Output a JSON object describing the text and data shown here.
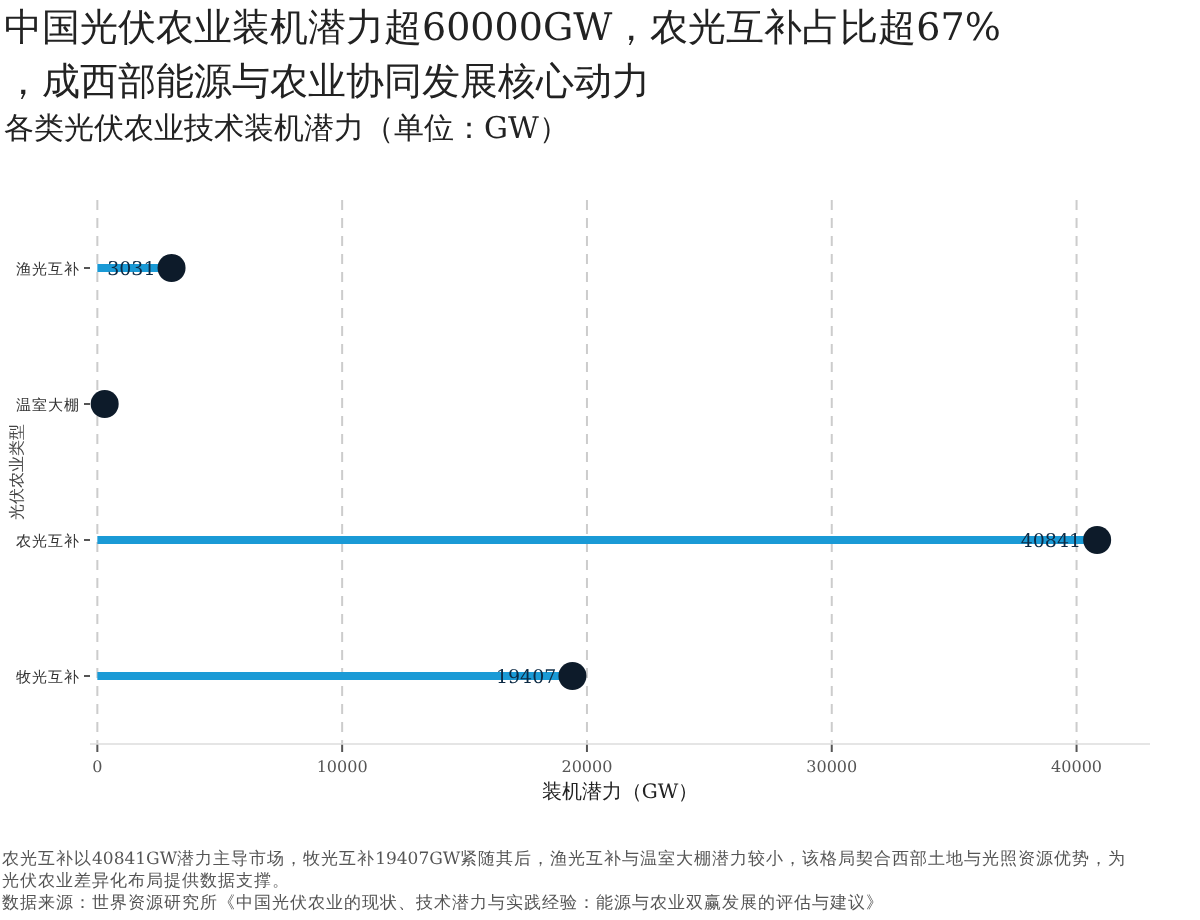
{
  "chart_data": {
    "type": "lollipop",
    "orientation": "horizontal",
    "title": "中国光伏农业装机潜力超60000GW，农光互补占比超67%，成西部能源与农业协同发展核心动力",
    "subtitle": "各类光伏农业技术装机潜力（单位：GW）",
    "xlabel": "装机潜力（GW）",
    "ylabel": "光伏农业类型",
    "categories": [
      "渔光互补",
      "温室大棚",
      "农光互补",
      "牧光互补"
    ],
    "values": [
      3031,
      300,
      40841,
      19407
    ],
    "value_labels": [
      "3031",
      null,
      "40841",
      "19407"
    ],
    "color": "#0d1b2a",
    "xlim": [
      -300,
      43000
    ],
    "xticks": [
      0,
      10000,
      20000,
      30000,
      40000
    ],
    "grid": "x",
    "marker": "circle",
    "annotations": [
      "农光互补以40841GW潜力主导市场，牧光互补19407GW紧随其后，渔光互补与温室大棚潜力较小，该格局契合西部土地与光照资源优势，为光伏农业差异化布局提供数据支撑。",
      "数据来源：世界资源研究所《中国光伏农业的现状、技术潜力与实践经验：能源与农业双赢发展的评估与建议》"
    ]
  }
}
